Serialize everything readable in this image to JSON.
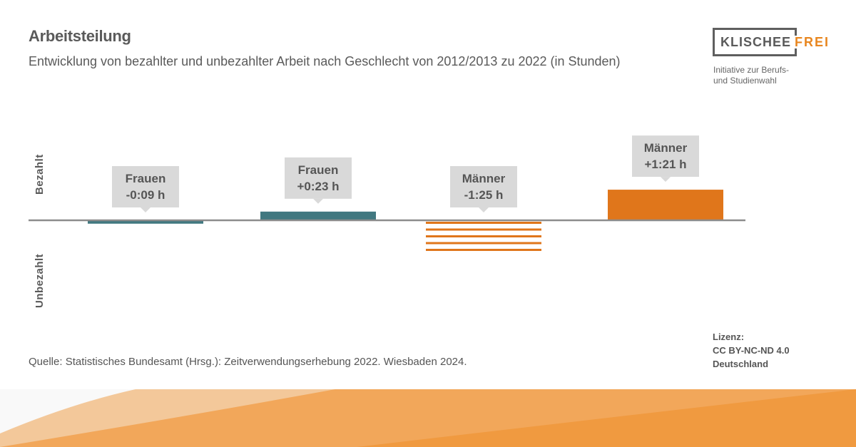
{
  "header": {
    "title": "Arbeitsteilung",
    "subtitle": "Entwicklung von bezahlter und unbezahlter Arbeit nach Geschlecht von 2012/2013 zu 2022 (in Stunden)"
  },
  "logo": {
    "word1": "KLISCHEE",
    "word2": "FREI",
    "tagline_line1": "Initiative zur Berufs-",
    "tagline_line2": "und Studienwahl"
  },
  "footer": {
    "source": "Quelle: Statistisches Bundesamt (Hrsg.): Zeitverwendungserhebung 2022. Wiesbaden 2024.",
    "license_1": "Lizenz:",
    "license_2": "CC BY-NC-ND 4.0",
    "license_3": "Deutschland"
  },
  "colors": {
    "frauen": "#417880",
    "maenner": "#e0761b",
    "axis": "#8c8c8c",
    "callout": "#d9d9d9"
  },
  "chart_data": {
    "type": "bar",
    "title": "Arbeitsteilung",
    "axis_labels": {
      "positive": "Bezahlt",
      "negative": "Unbezahlt"
    },
    "unit": "minutes",
    "bars": [
      {
        "group": "Frauen",
        "label_1": "Frauen",
        "label_2": "-0:09 h",
        "value": -9,
        "kind": "bezahlt",
        "style": "solid",
        "color_key": "frauen"
      },
      {
        "group": "Frauen",
        "label_1": "Frauen",
        "label_2": "+0:23 h",
        "value": 23,
        "kind": "bezahlt",
        "style": "solid",
        "color_key": "frauen"
      },
      {
        "group": "Männer",
        "label_1": "Männer",
        "label_2": "-1:25 h",
        "value": -85,
        "kind": "bezahlt",
        "style": "striped",
        "color_key": "maenner"
      },
      {
        "group": "Männer",
        "label_1": "Männer",
        "label_2": "+1:21 h",
        "value": 81,
        "kind": "bezahlt",
        "style": "solid",
        "color_key": "maenner"
      }
    ]
  }
}
